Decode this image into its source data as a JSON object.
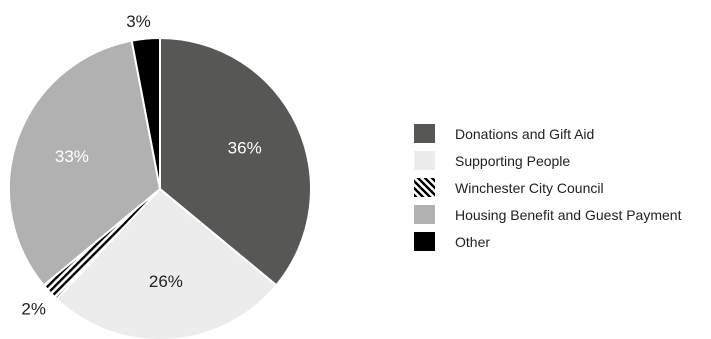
{
  "chart_data": {
    "type": "pie",
    "title": "",
    "slices": [
      {
        "label": "Donations and Gift Aid",
        "value": 36,
        "display": "36%",
        "color": "#575756",
        "pattern": "solid",
        "label_color": "#ffffff",
        "label_position": "inside"
      },
      {
        "label": "Supporting People",
        "value": 26,
        "display": "26%",
        "color": "#ececec",
        "pattern": "solid",
        "label_color": "#222222",
        "label_position": "inside"
      },
      {
        "label": "Winchester City Council",
        "value": 2,
        "display": "2%",
        "color": "#000000",
        "pattern": "diagonal-stripes",
        "label_color": "#222222",
        "label_position": "outside"
      },
      {
        "label": "Housing Benefit and Guest Payment",
        "value": 33,
        "display": "33%",
        "color": "#b1b1b1",
        "pattern": "solid",
        "label_color": "#ffffff",
        "label_position": "inside"
      },
      {
        "label": "Other",
        "value": 3,
        "display": "3%",
        "color": "#000000",
        "pattern": "solid",
        "label_color": "#222222",
        "label_position": "outside"
      }
    ],
    "start_angle_deg": 0,
    "direction": "clockwise",
    "legend_position": "right"
  }
}
